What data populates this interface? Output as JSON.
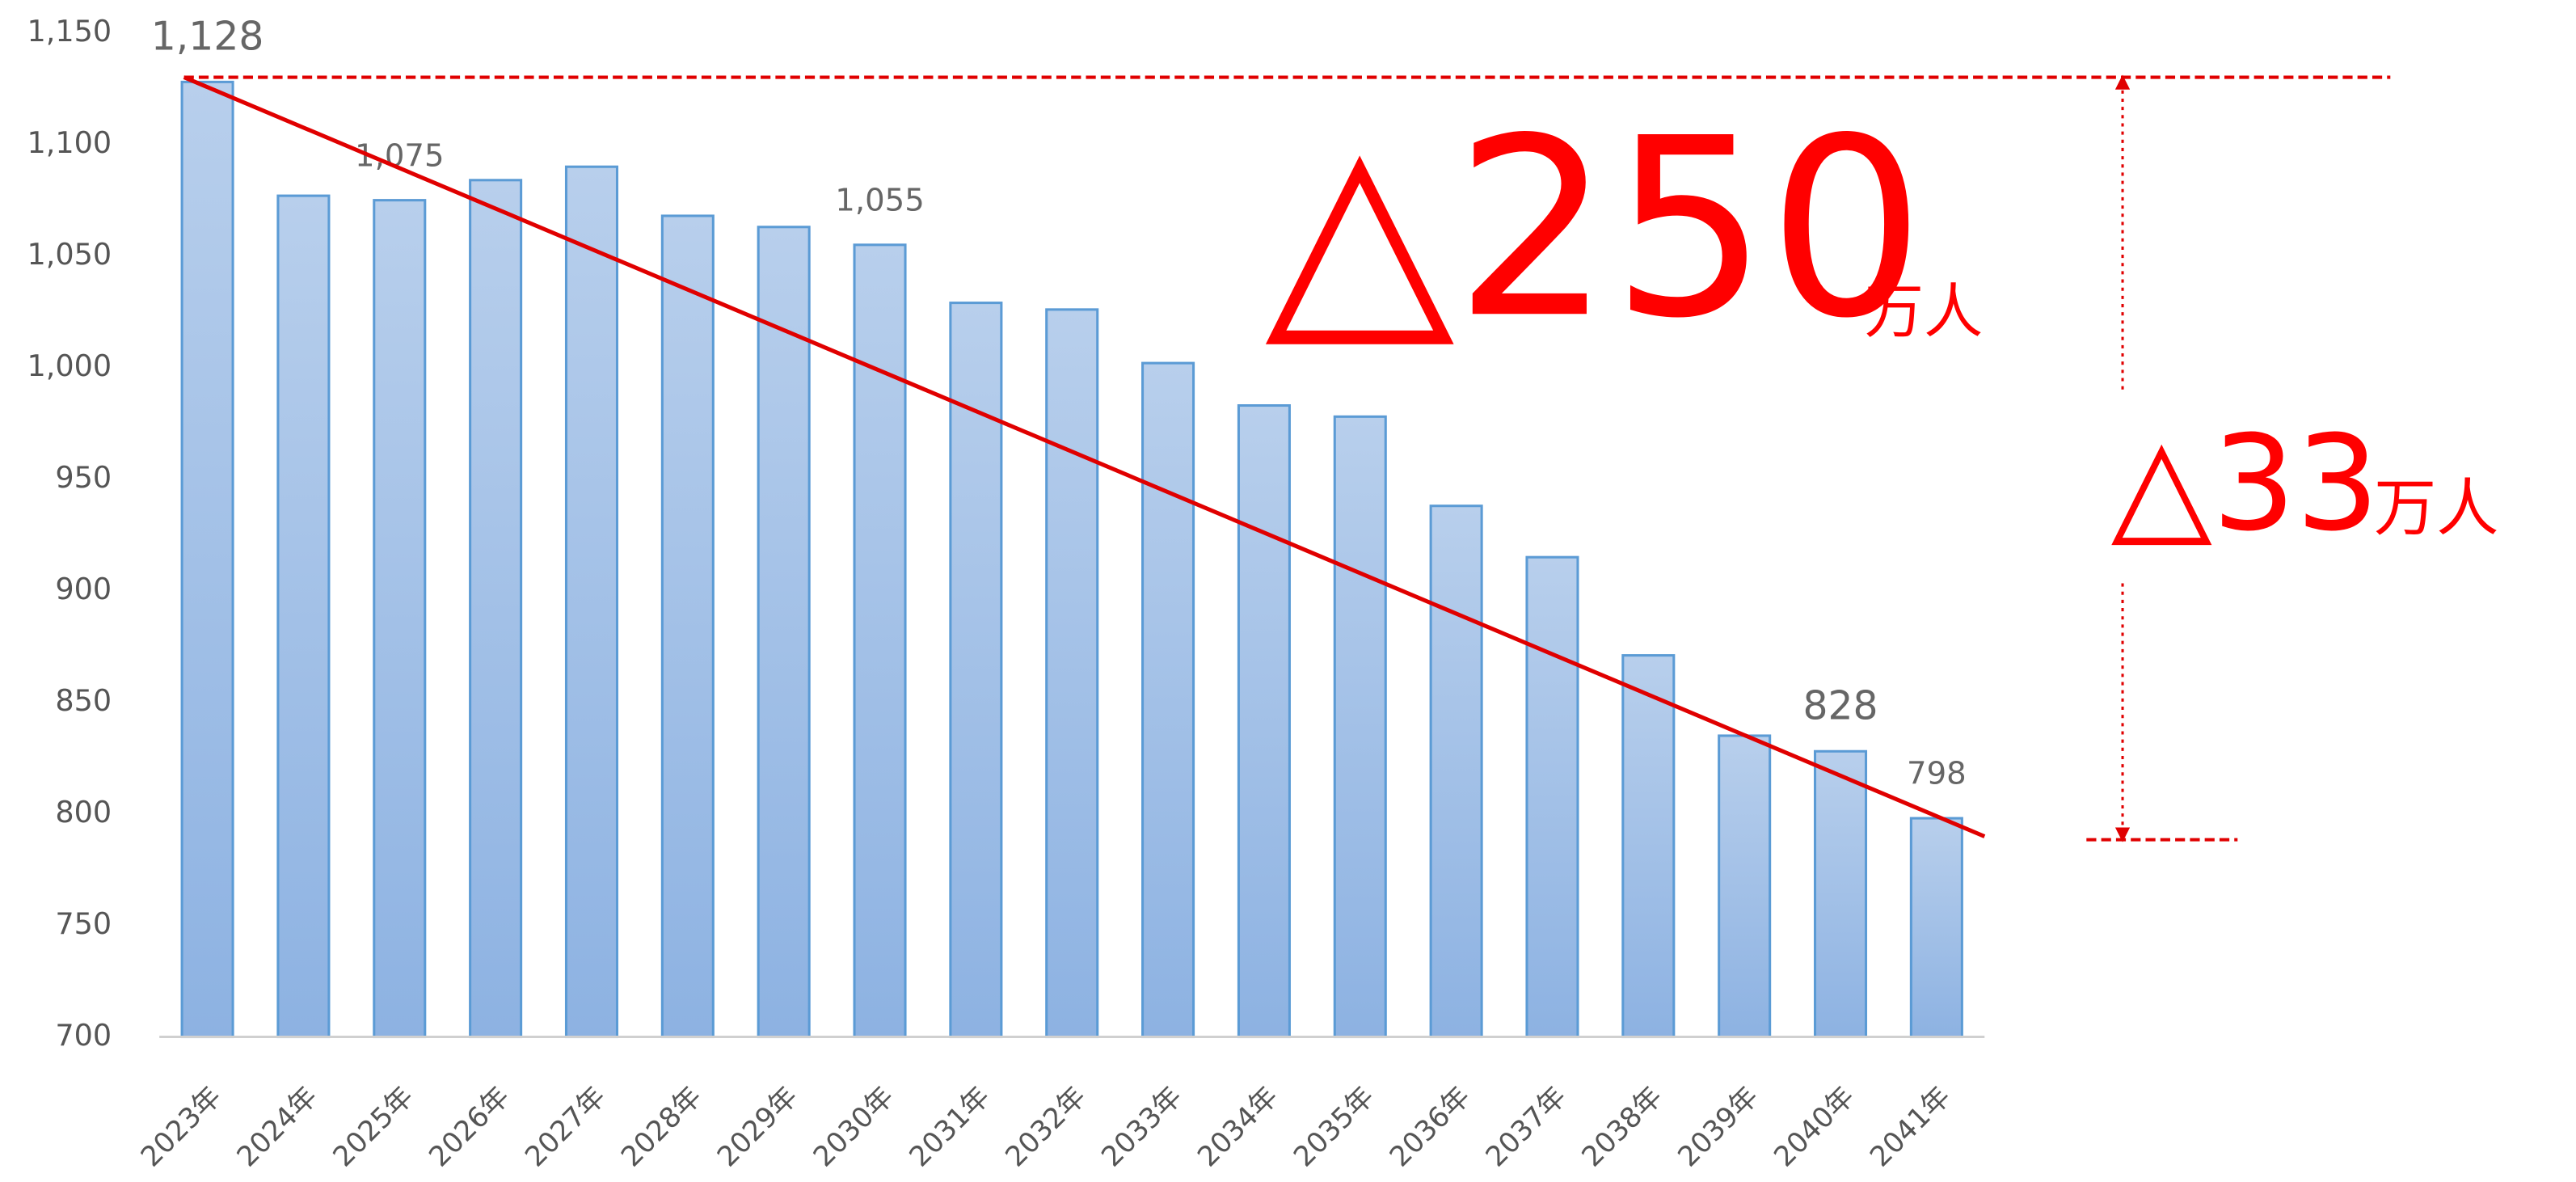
{
  "chart_data": {
    "type": "bar",
    "categories": [
      "2023年",
      "2024年",
      "2025年",
      "2026年",
      "2027年",
      "2028年",
      "2029年",
      "2030年",
      "2031年",
      "2032年",
      "2033年",
      "2034年",
      "2035年",
      "2036年",
      "2037年",
      "2038年",
      "2039年",
      "2040年",
      "2041年"
    ],
    "values": [
      1128,
      1077,
      1075,
      1084,
      1090,
      1068,
      1063,
      1055,
      1029,
      1026,
      1002,
      983,
      978,
      938,
      915,
      871,
      835,
      828,
      798
    ],
    "value_labels": [
      "1,128",
      null,
      "1,075",
      null,
      null,
      null,
      null,
      "1,055",
      null,
      null,
      null,
      null,
      null,
      null,
      null,
      null,
      null,
      "828",
      "798"
    ],
    "color": "#9dbde6",
    "ylim": [
      700,
      1150
    ],
    "yticks": [
      700,
      750,
      800,
      850,
      900,
      950,
      {
        "value": 1000,
        "label": "1,000"
      },
      {
        "value": 1050,
        "label": "1,050"
      },
      {
        "value": 1100,
        "label": "1,100"
      },
      {
        "value": 1150,
        "label": "1,150"
      }
    ],
    "annotations": [
      "△250",
      "万人",
      "△33",
      "万人"
    ]
  }
}
